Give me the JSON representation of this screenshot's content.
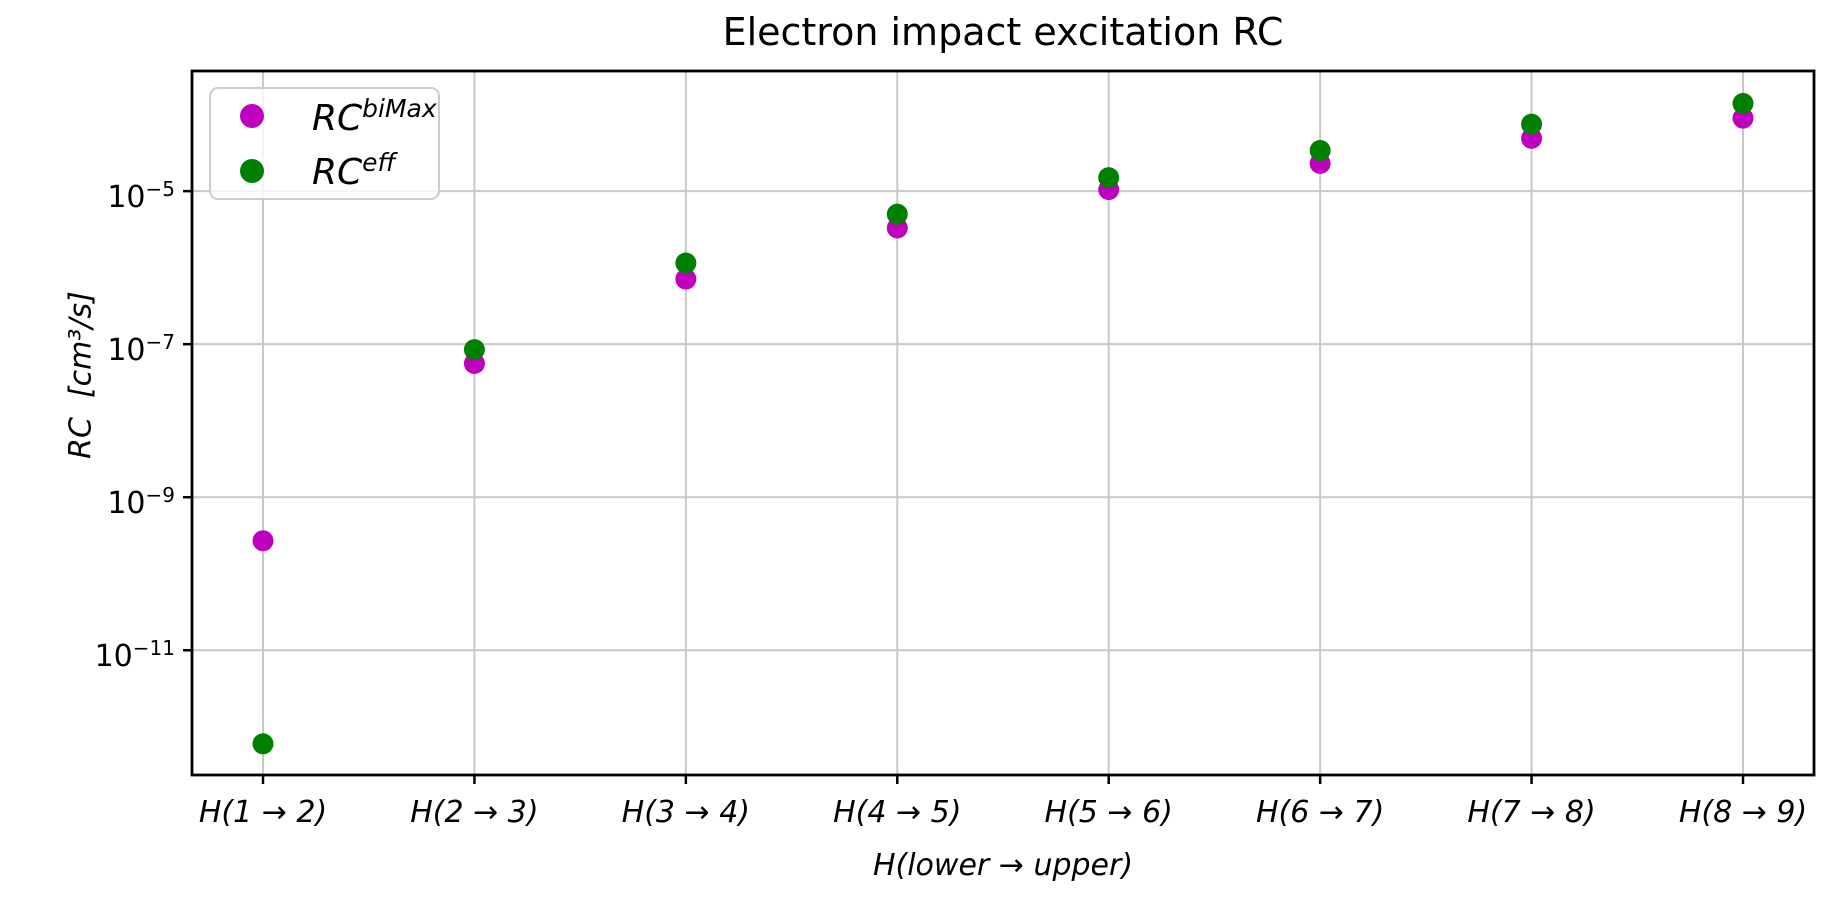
{
  "chart_data": {
    "type": "scatter",
    "title": "Electron impact excitation RC",
    "xlabel": "H(lower → upper)",
    "ylabel": "RC  [cm³/s]",
    "x_categories": [
      "H(1 → 2)",
      "H(2 → 3)",
      "H(3 → 4)",
      "H(4 → 5)",
      "H(5 → 6)",
      "H(6 → 7)",
      "H(7 → 8)",
      "H(8 → 9)"
    ],
    "y_scale": "log",
    "y_tick_exponents": [
      -5,
      -7,
      -9,
      -11
    ],
    "ylim_exponents": [
      -12.63,
      -3.43
    ],
    "grid": true,
    "legend_position": "upper left",
    "series": [
      {
        "key": "bimax",
        "label_base": "RC",
        "label_sup": "biMax",
        "color": "#bf00bf",
        "marker": "circle",
        "values": [
          2.7e-10,
          5.6e-08,
          7.1e-07,
          3.3e-06,
          1.05e-05,
          2.3e-05,
          4.9e-05,
          9e-05
        ]
      },
      {
        "key": "eff",
        "label_base": "RC",
        "label_sup": "eff",
        "color": "#008000",
        "marker": "circle",
        "values": [
          6e-13,
          8.5e-08,
          1.15e-06,
          5e-06,
          1.5e-05,
          3.4e-05,
          7.5e-05,
          0.00014
        ]
      }
    ]
  },
  "colors": {
    "grid": "#c8c8c8",
    "axis": "#000000",
    "legend_border": "#cccccc",
    "background": "#ffffff"
  }
}
